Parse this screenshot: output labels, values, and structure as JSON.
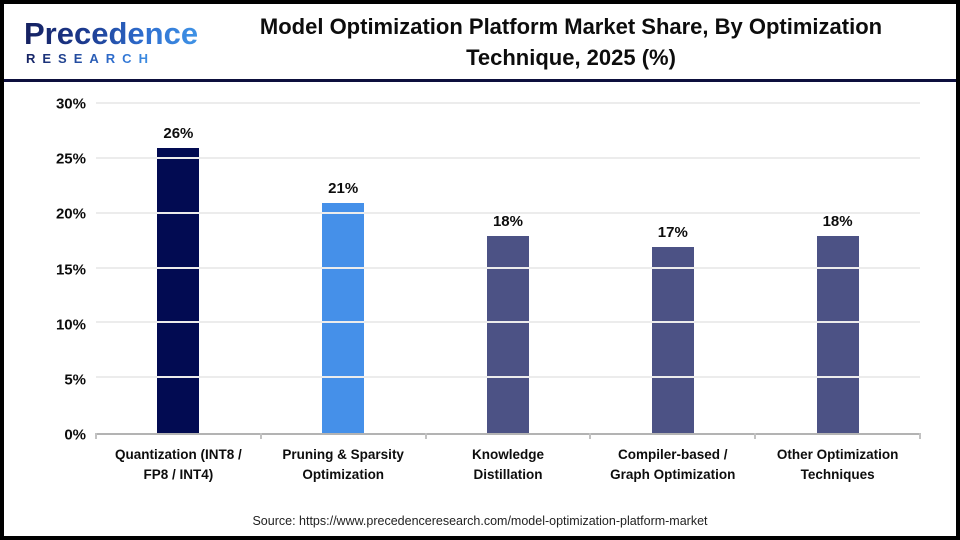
{
  "header": {
    "logo_line1": "Precedence",
    "logo_line2": "RESEARCH",
    "title_line1": "Model Optimization Platform Market Share, By Optimization",
    "title_line2": "Technique, 2025 (%)"
  },
  "chart_data": {
    "type": "bar",
    "title": "Model Optimization Platform Market Share, By Optimization Technique, 2025 (%)",
    "categories": [
      "Quantization (INT8 / FP8 / INT4)",
      "Pruning & Sparsity Optimization",
      "Knowledge Distillation",
      "Compiler-based / Graph Optimization",
      "Other Optimization Techniques"
    ],
    "category_lines": [
      [
        "Quantization (INT8 /",
        "FP8 / INT4)"
      ],
      [
        "Pruning & Sparsity",
        "Optimization"
      ],
      [
        "Knowledge",
        "Distillation"
      ],
      [
        "Compiler-based /",
        "Graph Optimization"
      ],
      [
        "Other Optimization",
        "Techniques"
      ]
    ],
    "values": [
      26,
      21,
      18,
      17,
      18
    ],
    "value_labels": [
      "26%",
      "21%",
      "18%",
      "17%",
      "18%"
    ],
    "bar_colors": [
      "#020b52",
      "#4590e9",
      "#4c5285",
      "#4c5285",
      "#4c5285"
    ],
    "xlabel": "",
    "ylabel": "",
    "ylim": [
      0,
      30
    ],
    "ytick_values": [
      0,
      5,
      10,
      15,
      20,
      25,
      30
    ],
    "ytick_labels": [
      "0%",
      "5%",
      "10%",
      "15%",
      "20%",
      "25%",
      "30%"
    ],
    "grid": true,
    "legend": false,
    "gridline_color": "#ececec",
    "baseline_color": "#b3b3b3"
  },
  "footer": {
    "source": "Source: https://www.precedenceresearch.com/model-optimization-platform-market"
  },
  "colors": {
    "header_divider": "#0d0f3d",
    "frame_border": "#000000",
    "logo_gradient_start": "#15205f",
    "logo_gradient_end": "#3f93e6"
  }
}
